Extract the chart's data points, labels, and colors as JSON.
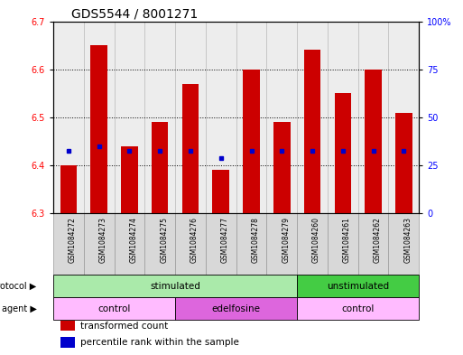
{
  "title": "GDS5544 / 8001271",
  "samples": [
    "GSM1084272",
    "GSM1084273",
    "GSM1084274",
    "GSM1084275",
    "GSM1084276",
    "GSM1084277",
    "GSM1084278",
    "GSM1084279",
    "GSM1084260",
    "GSM1084261",
    "GSM1084262",
    "GSM1084263"
  ],
  "bar_bottoms": [
    6.3,
    6.3,
    6.3,
    6.3,
    6.3,
    6.3,
    6.3,
    6.3,
    6.3,
    6.3,
    6.3,
    6.3
  ],
  "bar_tops": [
    6.4,
    6.65,
    6.44,
    6.49,
    6.57,
    6.39,
    6.6,
    6.49,
    6.64,
    6.55,
    6.6,
    6.51
  ],
  "percentile_values": [
    6.43,
    6.44,
    6.43,
    6.43,
    6.43,
    6.415,
    6.43,
    6.43,
    6.43,
    6.43,
    6.43,
    6.43
  ],
  "ylim_left": [
    6.3,
    6.7
  ],
  "ylim_right": [
    0,
    100
  ],
  "yticks_left": [
    6.3,
    6.4,
    6.5,
    6.6,
    6.7
  ],
  "yticks_right": [
    0,
    25,
    50,
    75,
    100
  ],
  "yticks_right_labels": [
    "0",
    "25",
    "50",
    "75",
    "100%"
  ],
  "bar_color": "#cc0000",
  "blue_color": "#0000cc",
  "title_fontsize": 10,
  "protocol_row": [
    {
      "label": "stimulated",
      "start": 0,
      "end": 8,
      "color": "#aaeaaa"
    },
    {
      "label": "unstimulated",
      "start": 8,
      "end": 12,
      "color": "#44cc44"
    }
  ],
  "agent_row": [
    {
      "label": "control",
      "start": 0,
      "end": 4,
      "color": "#ffbbff"
    },
    {
      "label": "edelfosine",
      "start": 4,
      "end": 8,
      "color": "#dd66dd"
    },
    {
      "label": "control",
      "start": 8,
      "end": 12,
      "color": "#ffbbff"
    }
  ],
  "legend_items": [
    {
      "label": "transformed count",
      "color": "#cc0000"
    },
    {
      "label": "percentile rank within the sample",
      "color": "#0000cc"
    }
  ],
  "bg_color": "white",
  "bar_width": 0.55
}
